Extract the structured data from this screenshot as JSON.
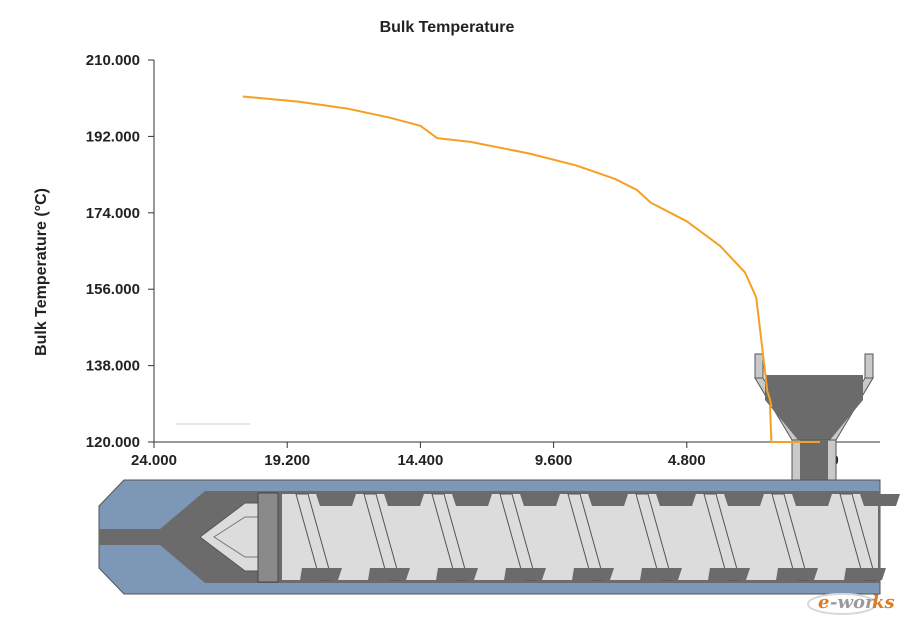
{
  "chart_data": {
    "type": "line",
    "title": "Bulk Temperature",
    "xlabel": "",
    "ylabel": "Bulk Temperature (°C)",
    "xlim": [
      24.0,
      0.0
    ],
    "ylim": [
      120.0,
      210.0
    ],
    "x_ticks": [
      "24.000",
      "19.200",
      "14.400",
      "9.600",
      "4.800",
      "0.000"
    ],
    "y_ticks": [
      "210.000",
      "192.000",
      "174.000",
      "156.000",
      "138.000",
      "120.000"
    ],
    "grid": false,
    "color": "#f5a023",
    "series": [
      {
        "x": [
          20.8,
          18.8,
          17.0,
          15.5,
          14.4,
          13.8,
          12.6,
          10.5,
          8.8,
          7.4,
          6.6,
          6.1,
          4.8,
          3.6,
          2.7,
          2.3,
          2.05,
          1.9,
          1.8,
          1.75,
          1.8,
          1.75,
          0.0
        ],
        "y": [
          201.4,
          200.2,
          198.5,
          196.4,
          194.5,
          191.6,
          190.7,
          188.0,
          185.2,
          182.0,
          179.4,
          176.4,
          172.0,
          166.2,
          159.9,
          154.1,
          140.5,
          132.0,
          130.0,
          128.5,
          128.5,
          120.0,
          120.0
        ]
      }
    ]
  },
  "watermark": "e-works"
}
